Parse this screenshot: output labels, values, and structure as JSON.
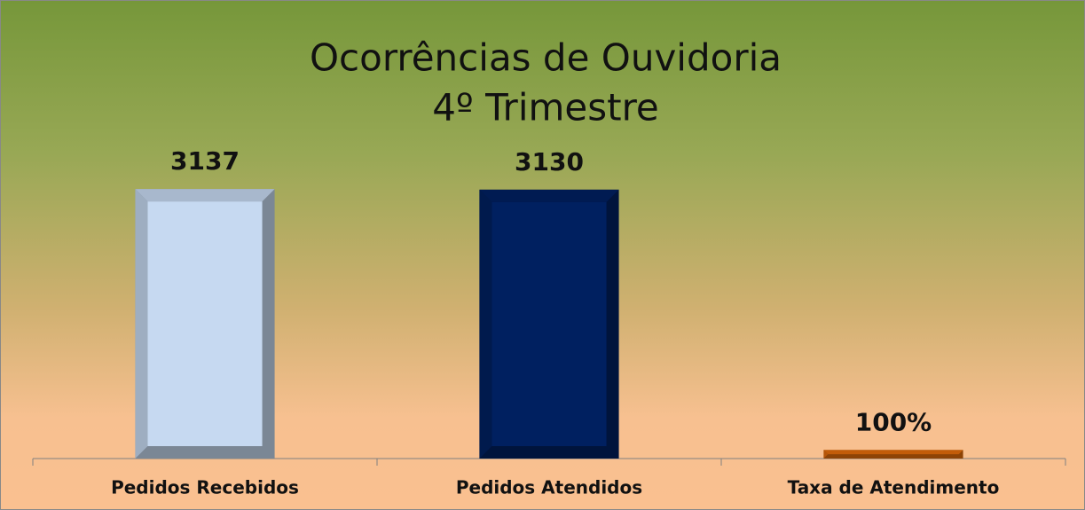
{
  "chart_data": {
    "type": "bar",
    "title": "Ocorrências de Ouvidoria",
    "subtitle": "4º Trimestre",
    "categories": [
      "Pedidos Recebidos",
      "Pedidos Atendidos",
      "Taxa de Atendimento"
    ],
    "values": [
      3137,
      3130,
      100
    ],
    "value_labels": [
      "3137",
      "3130",
      "100%"
    ],
    "colors": [
      "#c6d9f1",
      "#002060",
      "#e46c0a"
    ],
    "ylim": [
      0,
      3500
    ]
  }
}
